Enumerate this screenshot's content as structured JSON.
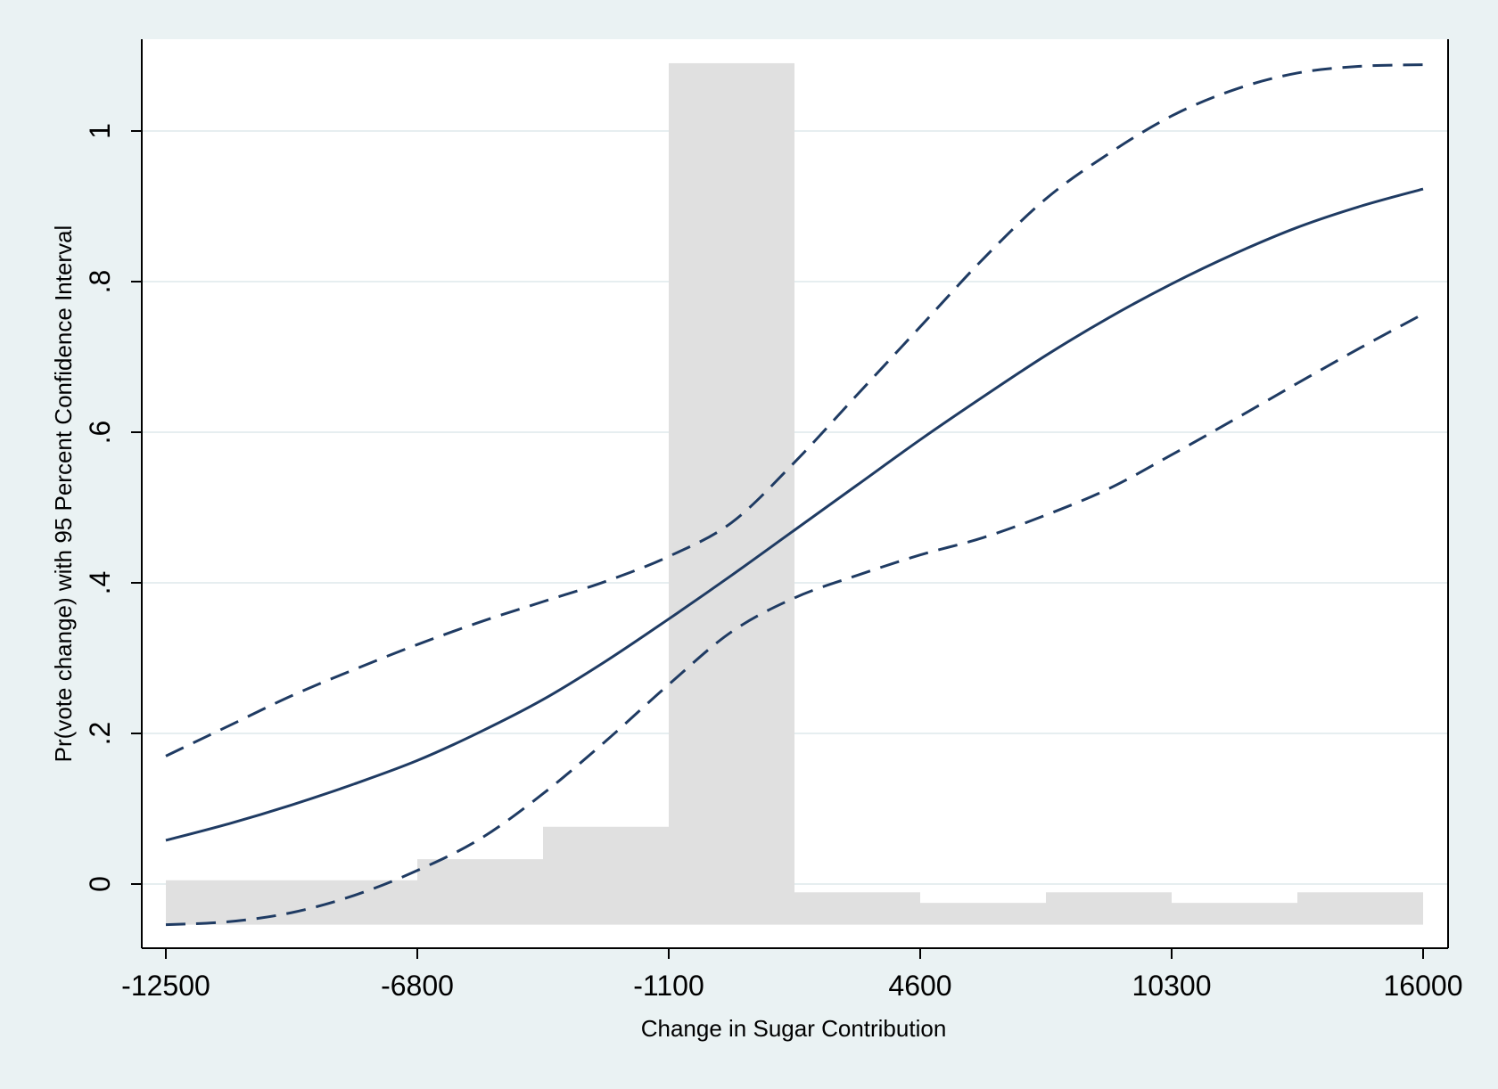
{
  "chart_data": {
    "type": "line",
    "title": "",
    "xlabel": "Change in Sugar Contribution",
    "ylabel": "Pr(vote change) with 95 Percent Confidence Interval",
    "xlim": [
      -12500,
      16000
    ],
    "ylim": [
      -0.088,
      1.12
    ],
    "x_ticks": [
      -12500,
      -6800,
      -1100,
      4600,
      10300,
      16000
    ],
    "x_tick_labels": [
      "-12500",
      "-6800",
      "-1100",
      "4600",
      "10300",
      "16000"
    ],
    "y_ticks": [
      0,
      0.2,
      0.4,
      0.6,
      0.8,
      1
    ],
    "y_tick_labels": [
      "0",
      ".2",
      ".4",
      ".6",
      ".8",
      "1"
    ],
    "grid": true,
    "legend": "none",
    "colors": {
      "background": "#eaf2f3",
      "plot_background": "#ffffff",
      "gridline": "#e6eef0",
      "line": "#1f3b63",
      "histogram": "#e0e0e0"
    },
    "histogram": {
      "baseline": -0.054,
      "bins": [
        {
          "x0": -12500,
          "x1": -6800,
          "top": 0.005
        },
        {
          "x0": -6800,
          "x1": -3950,
          "top": 0.033
        },
        {
          "x0": -3950,
          "x1": -1100,
          "top": 0.076
        },
        {
          "x0": -1100,
          "x1": 1750,
          "top": 1.09
        },
        {
          "x0": 1750,
          "x1": 4600,
          "top": -0.011
        },
        {
          "x0": 4600,
          "x1": 7450,
          "top": -0.025
        },
        {
          "x0": 7450,
          "x1": 10300,
          "top": -0.011
        },
        {
          "x0": 10300,
          "x1": 13150,
          "top": -0.025
        },
        {
          "x0": 13150,
          "x1": 16000,
          "top": -0.011
        }
      ]
    },
    "series": [
      {
        "style": "solid",
        "x": [
          -12500,
          -11075,
          -9650,
          -8225,
          -6800,
          -5375,
          -3950,
          -2525,
          -1100,
          325,
          1750,
          3175,
          4600,
          6025,
          7450,
          8875,
          10300,
          11725,
          13150,
          14575,
          16000
        ],
        "values": [
          0.058,
          0.08,
          0.105,
          0.133,
          0.164,
          0.202,
          0.245,
          0.296,
          0.352,
          0.41,
          0.47,
          0.53,
          0.59,
          0.647,
          0.702,
          0.752,
          0.797,
          0.837,
          0.872,
          0.9,
          0.923
        ]
      },
      {
        "style": "dashed",
        "x": [
          -12500,
          -11075,
          -9650,
          -8225,
          -6800,
          -5375,
          -3950,
          -2525,
          -1100,
          325,
          1750,
          3175,
          4600,
          6025,
          7450,
          8875,
          10300,
          11725,
          13150,
          14575,
          16000
        ],
        "values": [
          0.17,
          0.21,
          0.25,
          0.285,
          0.318,
          0.348,
          0.375,
          0.402,
          0.435,
          0.48,
          0.56,
          0.65,
          0.74,
          0.83,
          0.91,
          0.97,
          1.02,
          1.055,
          1.077,
          1.086,
          1.088
        ]
      },
      {
        "style": "dashed",
        "x": [
          -12500,
          -11075,
          -9650,
          -8225,
          -6800,
          -5375,
          -3950,
          -2525,
          -1100,
          325,
          1750,
          3175,
          4600,
          6025,
          7450,
          8875,
          10300,
          11725,
          13150,
          14575,
          16000
        ],
        "values": [
          -0.054,
          -0.05,
          -0.038,
          -0.015,
          0.018,
          0.06,
          0.12,
          0.19,
          0.265,
          0.335,
          0.38,
          0.41,
          0.437,
          0.46,
          0.49,
          0.525,
          0.57,
          0.617,
          0.665,
          0.712,
          0.757
        ]
      }
    ]
  }
}
